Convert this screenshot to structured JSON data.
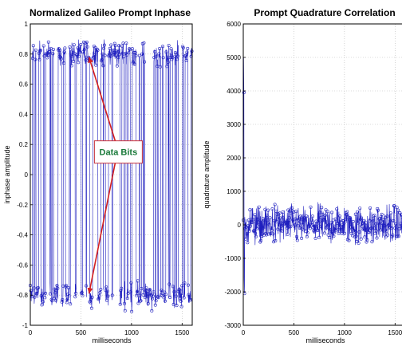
{
  "charts": [
    {
      "type": "line",
      "title": "Normalized Galileo Prompt Inphase",
      "xlabel": "milliseconds",
      "ylabel": "inphase amplitude",
      "xlim": [
        0,
        1600
      ],
      "ylim": [
        -1,
        1
      ],
      "xticks": [
        0,
        500,
        1000,
        1500
      ],
      "yticks": [
        -1,
        -0.8,
        -0.6,
        -0.4,
        -0.2,
        0,
        0.2,
        0.4,
        0.6,
        0.8,
        1
      ],
      "ytick_labels": [
        "-1",
        "-0.8",
        "-0.6",
        "-0.4",
        "-0.2",
        "0",
        "0.2",
        "0.4",
        "0.6",
        "0.8",
        "1"
      ],
      "grid": true,
      "series_color": "#1f1fbf",
      "marker": "circle",
      "levels": [
        0.8,
        -0.8
      ],
      "noise": 0.05,
      "annotation": {
        "text": "Data Bits",
        "text_color": "#1a7a3a",
        "box_color": "#c8323c",
        "arrow_color": "#d42020",
        "anchor": [
          870,
          0.15
        ],
        "arrow_targets": [
          [
            580,
            0.78
          ],
          [
            580,
            -0.79
          ]
        ]
      }
    },
    {
      "type": "line",
      "title": "Prompt Quadrature Correlation",
      "xlabel": "milliseconds",
      "ylabel": "quadrature amplitude",
      "xlim": [
        0,
        1600
      ],
      "ylim": [
        -3000,
        6000
      ],
      "xticks": [
        0,
        500,
        1000,
        1500
      ],
      "yticks": [
        -3000,
        -2000,
        -1000,
        0,
        1000,
        2000,
        3000,
        4000,
        5000,
        6000
      ],
      "ytick_labels": [
        "-3000",
        "-2000",
        "-1000",
        "0",
        "1000",
        "2000",
        "3000",
        "4000",
        "5000",
        "6000"
      ],
      "grid": true,
      "series_color": "#1f1fbf",
      "marker": "circle",
      "center": 0,
      "noise": 280,
      "spikes": [
        [
          3,
          5000
        ],
        [
          6,
          3950
        ],
        [
          9,
          -1600
        ],
        [
          12,
          -2050
        ],
        [
          16,
          -850
        ]
      ]
    }
  ]
}
